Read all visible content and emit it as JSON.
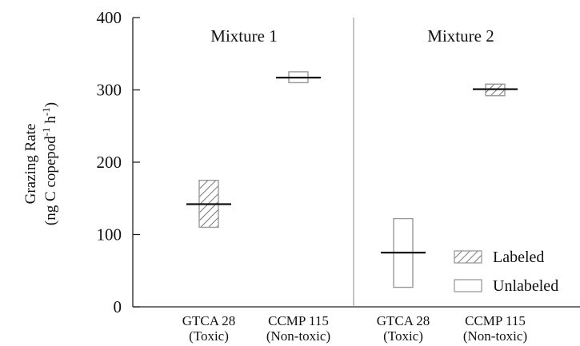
{
  "chart_data": {
    "type": "bar",
    "ylabel_line1": "Grazing Rate",
    "ylabel_line2_parts": [
      "(ng C copepod",
      "-1",
      " h",
      "-1",
      ")"
    ],
    "ylim": [
      0,
      400
    ],
    "yticks": [
      "0",
      "100",
      "200",
      "300",
      "400"
    ],
    "grid": false,
    "legend_position": "bottom-right",
    "series_styles": {
      "Labeled": "hatched",
      "Unlabeled": "open"
    },
    "panels": [
      {
        "title": "Mixture 1",
        "boxes": [
          {
            "category_line1": "GTCA 28",
            "category_line2": "(Toxic)",
            "series": "Labeled",
            "low": 110,
            "high": 175,
            "mean": 142
          },
          {
            "category_line1": "CCMP 115",
            "category_line2": "(Non-toxic)",
            "series": "Unlabeled",
            "low": 310,
            "high": 325,
            "mean": 317
          }
        ]
      },
      {
        "title": "Mixture 2",
        "boxes": [
          {
            "category_line1": "GTCA 28",
            "category_line2": "(Toxic)",
            "series": "Unlabeled",
            "low": 27,
            "high": 122,
            "mean": 75
          },
          {
            "category_line1": "CCMP 115",
            "category_line2": "(Non-toxic)",
            "series": "Labeled",
            "low": 292,
            "high": 308,
            "mean": 301
          }
        ]
      }
    ],
    "legend": [
      {
        "label": "Labeled",
        "style": "hatched"
      },
      {
        "label": "Unlabeled",
        "style": "open"
      }
    ],
    "colors": {
      "axis": "#222222",
      "box_edge": "#9a9a9a",
      "hatch": "#555555",
      "mean_line": "#111111"
    }
  }
}
